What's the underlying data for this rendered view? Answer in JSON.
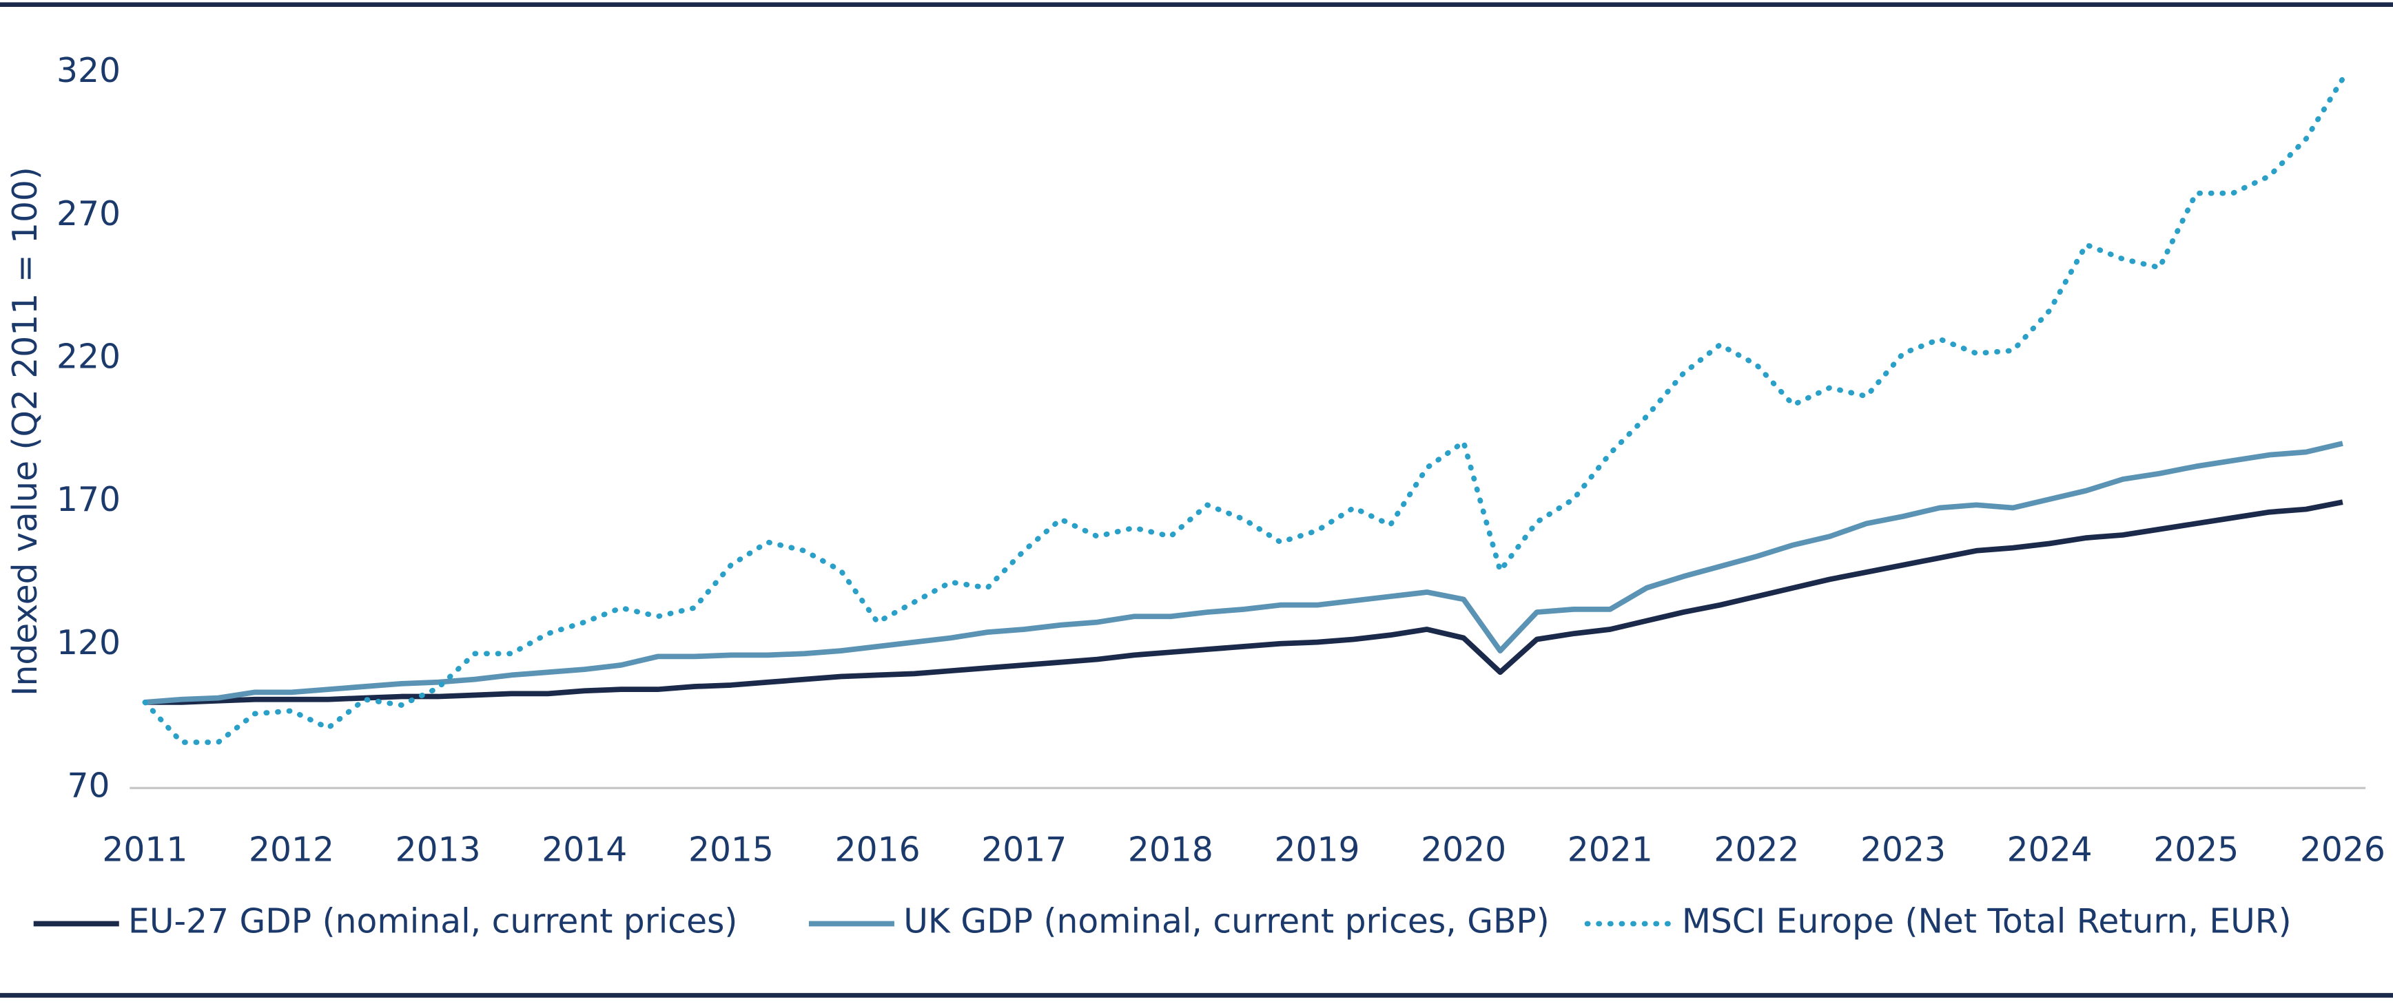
{
  "chart_data": {
    "type": "line",
    "y_label": "Indexed value (Q2 2011 = 100)",
    "x": [
      2011,
      2011.25,
      2011.5,
      2011.75,
      2012,
      2012.25,
      2012.5,
      2012.75,
      2013,
      2013.25,
      2013.5,
      2013.75,
      2014,
      2014.25,
      2014.5,
      2014.75,
      2015,
      2015.25,
      2015.5,
      2015.75,
      2016,
      2016.25,
      2016.5,
      2016.75,
      2017,
      2017.25,
      2017.5,
      2017.75,
      2018,
      2018.25,
      2018.5,
      2018.75,
      2019,
      2019.25,
      2019.5,
      2019.75,
      2020,
      2020.25,
      2020.5,
      2020.75,
      2021,
      2021.25,
      2021.5,
      2021.75,
      2022,
      2022.25,
      2022.5,
      2022.75,
      2023,
      2023.25,
      2023.5,
      2023.75,
      2024,
      2024.25,
      2024.5,
      2024.75,
      2025,
      2025.25,
      2025.5,
      2025.75,
      2026
    ],
    "series": [
      {
        "name": "EU-27 GDP (nominal, current prices)",
        "color": "#1b2a4a",
        "style": "solid",
        "values": [
          100,
          100,
          100.5,
          101,
          101,
          101,
          101.5,
          102,
          102,
          102.5,
          103,
          103,
          104,
          104.5,
          104.5,
          105.5,
          106,
          107,
          108,
          109,
          109.5,
          110,
          111,
          112,
          113,
          114,
          115,
          116.5,
          117.5,
          118.5,
          119.5,
          120.5,
          121,
          122,
          123.5,
          125.5,
          122.5,
          110.5,
          122,
          124,
          125.5,
          128.5,
          131.5,
          134,
          137,
          140,
          143,
          145.5,
          148,
          150.5,
          153,
          154,
          155.5,
          157.5,
          158.5,
          160.5,
          162.5,
          164.5,
          166.5,
          167.5,
          170
        ]
      },
      {
        "name": "UK GDP (nominal, current prices, GBP)",
        "color": "#5b93b5",
        "style": "solid",
        "values": [
          100,
          101,
          101.5,
          103.5,
          103.5,
          104.5,
          105.5,
          106.5,
          107,
          108,
          109.5,
          110.5,
          111.5,
          113,
          116,
          116,
          116.5,
          116.5,
          117,
          118,
          119.5,
          121,
          122.5,
          124.5,
          125.5,
          127,
          128,
          130,
          130,
          131.5,
          132.5,
          134,
          134,
          135.5,
          137,
          138.5,
          136,
          118,
          131.5,
          132.5,
          132.5,
          140,
          144,
          147.5,
          151,
          155,
          158,
          162.5,
          165,
          168,
          169,
          168,
          171,
          174,
          178,
          180,
          182.5,
          184.5,
          186.5,
          187.5,
          190.5
        ]
      },
      {
        "name": "MSCI Europe (Net Total Return, EUR)",
        "color": "#2a9fc8",
        "style": "dotted",
        "values": [
          100,
          86,
          86,
          96,
          97,
          91,
          101,
          99,
          105,
          117,
          117,
          124,
          128,
          133,
          130,
          133,
          148,
          156,
          153,
          146,
          128,
          135,
          142,
          140,
          153,
          164,
          158,
          161,
          158,
          169,
          164,
          156,
          160,
          168,
          162,
          182,
          191,
          146,
          163,
          171,
          187,
          200,
          215,
          225,
          218,
          204,
          210,
          207,
          222,
          227,
          222,
          223,
          237,
          260,
          255,
          252,
          278,
          278,
          284,
          297,
          318
        ]
      }
    ],
    "xlim": [
      2011,
      2026
    ],
    "xticks": [
      2011,
      2012,
      2013,
      2014,
      2015,
      2016,
      2017,
      2018,
      2019,
      2020,
      2021,
      2022,
      2023,
      2024,
      2025,
      2026
    ],
    "ylim": [
      70,
      320
    ],
    "yticks": [
      70,
      120,
      170,
      220,
      270,
      320
    ],
    "legend": "bottom"
  }
}
